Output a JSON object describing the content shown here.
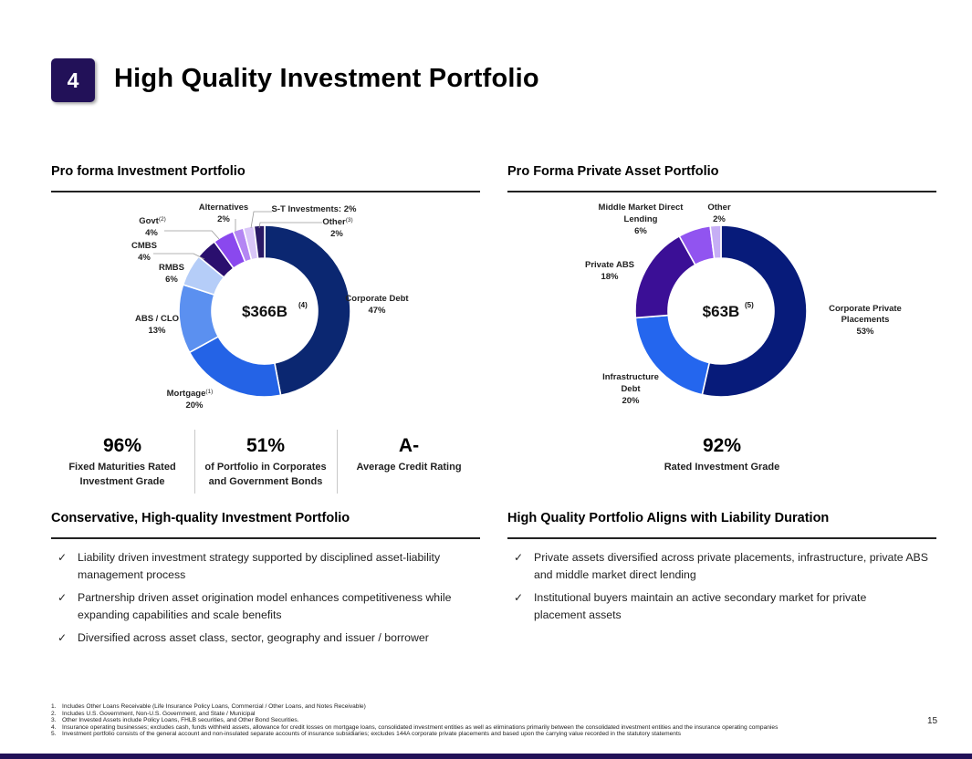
{
  "header": {
    "section_number": "4",
    "title": "High Quality Investment Portfolio"
  },
  "left": {
    "section_title": "Pro forma Investment Portfolio",
    "center_value": "$366B",
    "center_note": "(4)",
    "stats": [
      {
        "value": "96%",
        "label_line1": "Fixed Maturities Rated",
        "label_line2": "Investment Grade"
      },
      {
        "value": "51%",
        "label_line1": "of Portfolio in Corporates",
        "label_line2": "and Government Bonds"
      },
      {
        "value": "A-",
        "label_line1": "Average Credit Rating",
        "label_line2": ""
      }
    ]
  },
  "right": {
    "section_title": "Pro Forma Private Asset Portfolio",
    "center_value": "$63B",
    "center_note": "(5)",
    "stat": {
      "value": "92%",
      "label": "Rated Investment Grade"
    }
  },
  "chart_data": [
    {
      "type": "pie",
      "title": "Pro forma Investment Portfolio",
      "slices": [
        {
          "name": "Corporate Debt",
          "value": 47,
          "label": "47%",
          "color": "#0b2771"
        },
        {
          "name": "Mortgage",
          "sup": "(1)",
          "value": 20,
          "label": "20%",
          "color": "#2463e6"
        },
        {
          "name": "ABS / CLO",
          "value": 13,
          "label": "13%",
          "color": "#5b90f0"
        },
        {
          "name": "RMBS",
          "value": 6,
          "label": "6%",
          "color": "#b5cdf8"
        },
        {
          "name": "CMBS",
          "value": 4,
          "label": "4%",
          "color": "#2a0f6e"
        },
        {
          "name": "Govt",
          "sup": "(2)",
          "value": 4,
          "label": "4%",
          "color": "#8a48ee"
        },
        {
          "name": "Alternatives",
          "value": 2,
          "label": "2%",
          "color": "#b486f3"
        },
        {
          "name": "S-T Investments: 2%",
          "value": 2,
          "label": "",
          "color": "#d9c6f8"
        },
        {
          "name": "Other",
          "sup": "(3)",
          "value": 2,
          "label": "2%",
          "color": "#2a1a66"
        }
      ]
    },
    {
      "type": "pie",
      "title": "Pro Forma Private Asset Portfolio",
      "slices": [
        {
          "name": "Corporate Private Placements",
          "value": 53,
          "label": "53%",
          "color": "#071b7a"
        },
        {
          "name": "Infrastructure Debt",
          "value": 20,
          "label": "20%",
          "color": "#2466ee"
        },
        {
          "name": "Private ABS",
          "value": 18,
          "label": "18%",
          "color": "#3b0f96"
        },
        {
          "name": "Middle Market Direct Lending",
          "value": 6,
          "label": "6%",
          "color": "#9154f0"
        },
        {
          "name": "Other",
          "value": 2,
          "label": "2%",
          "color": "#c6aef5"
        }
      ]
    }
  ],
  "bottom_left": {
    "section_title": "Conservative, High-quality Investment Portfolio",
    "check_glyph": "✓",
    "bullets": [
      {
        "line1": "Liability driven investment strategy supported by disciplined asset-liability",
        "line2": "management process"
      },
      {
        "line1": "Partnership driven asset origination model enhances competitiveness while",
        "line2": "expanding capabilities and scale benefits"
      },
      {
        "line1": "Diversified across asset class, sector, geography and issuer / borrower",
        "line2": ""
      }
    ]
  },
  "bottom_right": {
    "section_title": "High Quality Portfolio Aligns with Liability Duration",
    "check_glyph": "✓",
    "bullets": [
      {
        "line1": "Private assets diversified across private placements, infrastructure, private ABS",
        "line2": "and middle market direct lending"
      },
      {
        "line1": "Institutional buyers maintain an active secondary market for private",
        "line2": "placement assets"
      }
    ]
  },
  "footnotes": [
    {
      "num": "1.",
      "text": "Includes Other Loans Receivable (Life Insurance Policy Loans, Commercial / Other Loans, and Notes Receivable)"
    },
    {
      "num": "2.",
      "text": "Includes U.S. Government, Non-U.S. Government, and State / Municipal"
    },
    {
      "num": "3.",
      "text": "Other Invested Assets include Policy Loans, FHLB securities, and Other Bond Securities."
    },
    {
      "num": "4.",
      "text": "Insurance operating businesses; excludes cash, funds withheld assets, allowance for credit losses on mortgage loans, consolidated investment entities as well as eliminations primarily between the consolidated investment entities and the insurance operating companies"
    },
    {
      "num": "5.",
      "text": "Investment portfolio consists of the general account and non-insulated separate accounts of insurance subsidiaries; excludes 144A corporate private placements and based upon the carrying value recorded in the statutory statements"
    }
  ],
  "page_number": "15"
}
